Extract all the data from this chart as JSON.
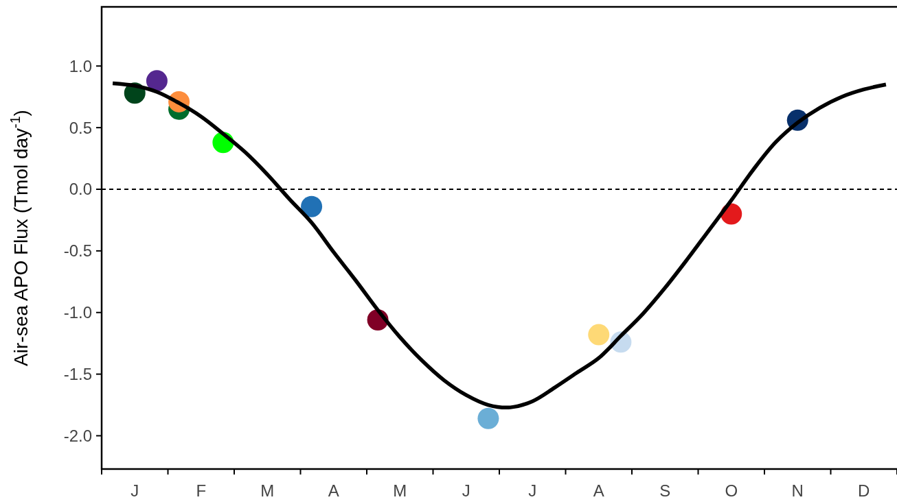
{
  "chart_data": {
    "type": "scatter",
    "ylabel": "Air-sea APO Flux (Tmol day$^{-1}$)",
    "categories": [
      null,
      "J",
      null,
      null,
      "F",
      null,
      null,
      "M",
      null,
      null,
      "A",
      null,
      null,
      "M",
      null,
      null,
      "J",
      null,
      null,
      "J",
      null,
      null,
      "A",
      null,
      null,
      "S",
      null,
      null,
      "O",
      null,
      null,
      "N",
      null,
      null,
      "D",
      null
    ],
    "ylim": [
      -2.27,
      1.48
    ],
    "yticks": [
      {
        "value": 1,
        "label": "1.0"
      },
      {
        "value": 0.5,
        "label": "0.5"
      },
      {
        "value": 0,
        "label": "0.0"
      },
      {
        "value": -0.5,
        "label": "-0.5"
      },
      {
        "value": -1,
        "label": "-1.0"
      },
      {
        "value": -1.5,
        "label": "-1.5"
      },
      {
        "value": -2,
        "label": "-2.0"
      }
    ],
    "ref_lines": [
      {
        "axis": "y",
        "value": 0,
        "line_style": "dashed",
        "color": "#000000"
      }
    ],
    "grid": false,
    "marker": "circle",
    "series": [
      {
        "type": "line",
        "color": "#000000",
        "marker": "none",
        "line_style": "solid",
        "values": [
          0.86,
          0.84,
          0.79,
          0.7,
          0.59,
          0.45,
          0.3,
          0.12,
          -0.08,
          -0.27,
          -0.51,
          -0.74,
          -0.98,
          -1.2,
          -1.39,
          -1.55,
          -1.67,
          -1.75,
          -1.77,
          -1.72,
          -1.61,
          -1.49,
          -1.37,
          -1.19,
          -1.01,
          -0.8,
          -0.57,
          -0.33,
          -0.09,
          0.16,
          0.38,
          0.54,
          0.66,
          0.75,
          0.81,
          0.85
        ]
      },
      {
        "values": [
          null,
          0.78,
          0.88,
          0.65,
          null,
          0.38,
          null,
          null,
          null,
          -0.14,
          null,
          null,
          -1.06,
          null,
          null,
          null,
          null,
          -1.86,
          null,
          null,
          null,
          null,
          -1.18,
          -1.24,
          null,
          null,
          null,
          null,
          -0.2,
          null,
          null,
          0.56,
          null,
          null,
          null,
          null
        ],
        "colors": [
          null,
          "#00441b",
          "#54278f",
          "#006d2c",
          null,
          "#00ff00",
          null,
          null,
          null,
          "#2171b5",
          null,
          null,
          "#800026",
          null,
          null,
          null,
          null,
          "#6baed6",
          null,
          null,
          null,
          null,
          "#fed976",
          "#c6dbef",
          null,
          null,
          null,
          null,
          "#e31a1c",
          null,
          null,
          "#08306b",
          null,
          null,
          null,
          null
        ]
      },
      {
        "values": [
          null,
          null,
          null,
          0.71,
          null,
          null,
          null,
          null,
          null,
          null,
          null,
          null,
          null,
          null,
          null,
          null,
          null,
          null,
          null,
          null,
          null,
          null,
          null,
          null,
          null,
          null,
          null,
          null,
          null,
          null,
          null,
          null,
          null,
          null,
          null,
          null
        ],
        "colors": [
          null,
          null,
          null,
          "#fd8d3c",
          null,
          null,
          null,
          null,
          null,
          null,
          null,
          null,
          null,
          null,
          null,
          null,
          null,
          null,
          null,
          null,
          null,
          null,
          null,
          null,
          null,
          null,
          null,
          null,
          null,
          null,
          null,
          null,
          null,
          null,
          null,
          null
        ]
      }
    ]
  }
}
